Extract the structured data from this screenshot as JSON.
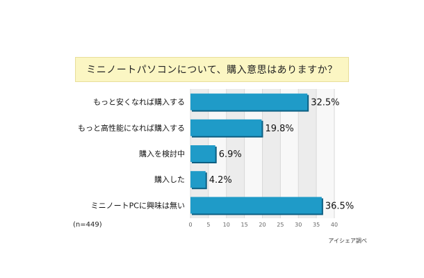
{
  "chart_data": {
    "type": "bar",
    "orientation": "horizontal",
    "title": "ミニノートパソコンについて、購入意思はありますか？",
    "categories": [
      "もっと安くなれば購入する",
      "もっと高性能になれば購入する",
      "購入を検討中",
      "購入した",
      "ミニノートPCに興味は無い"
    ],
    "values": [
      32.5,
      19.8,
      6.9,
      4.2,
      36.5
    ],
    "value_labels": [
      "32.5%",
      "19.8%",
      "6.9%",
      "4.2%",
      "36.5%"
    ],
    "xlim": [
      0,
      40
    ],
    "xticks": [
      0,
      5,
      10,
      15,
      20,
      25,
      30,
      35,
      40
    ],
    "grid": true,
    "bar_color": "#1f9bc8",
    "bar_shadow_color": "#0d5f82",
    "band_colors": [
      "#ececec",
      "#f8f8f8"
    ]
  },
  "notes": {
    "sample": "(n=449)",
    "source": "アイシェア調べ"
  }
}
